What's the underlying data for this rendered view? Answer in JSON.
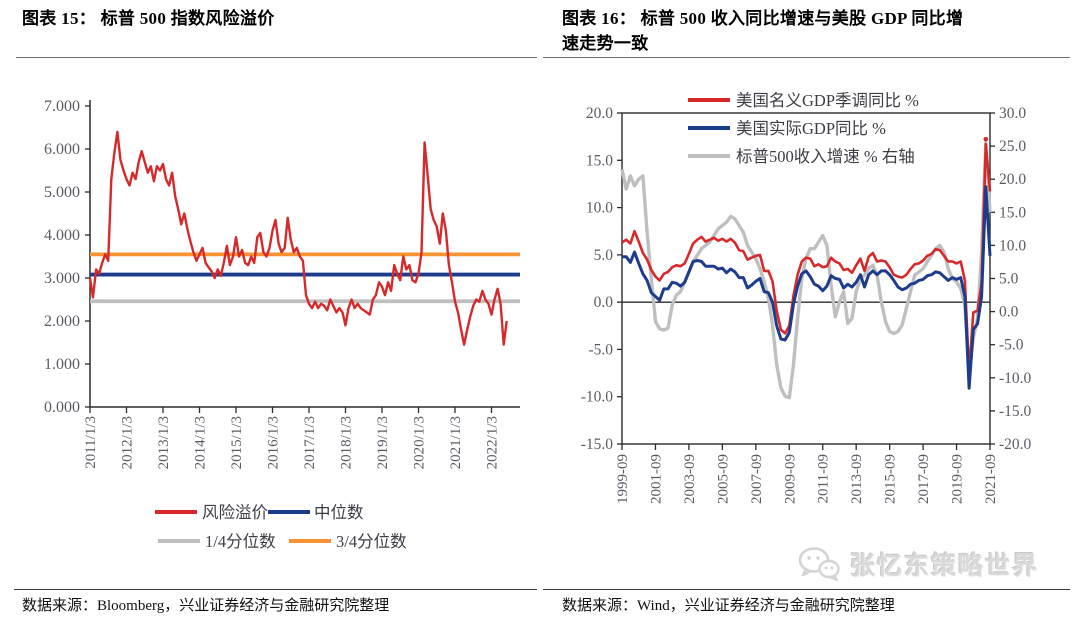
{
  "figure15": {
    "title": "图表 15： 标普 500 指数风险溢价",
    "source": "数据来源：Bloomberg，兴业证券经济与金融研究院整理"
  },
  "figure16": {
    "title_line1": "图表 16： 标普 500 收入同比增速与美股 GDP 同比增",
    "title_line2": "速走势一致",
    "source": "数据来源：Wind，兴业证券经济与金融研究院整理"
  },
  "watermark": {
    "text": "张忆东策略世界",
    "icon": "wechat-icon",
    "color": "#d9d9d9"
  },
  "colors": {
    "red": "#d7292a",
    "navy": "#1e3c8c",
    "gray": "#bfbfbf",
    "orange": "#f79333",
    "axis_text": "#5a5a64",
    "axis_line": "#2b2b2b"
  },
  "chart_data": [
    {
      "type": "line",
      "title": "标普 500 指数风险溢价",
      "ylim": [
        0,
        7
      ],
      "ytick_labels": [
        "0.000",
        "1.000",
        "2.000",
        "3.000",
        "4.000",
        "5.000",
        "6.000",
        "7.000"
      ],
      "x_tick_labels": [
        "2011/1/3",
        "2012/1/3",
        "2013/1/3",
        "2014/1/3",
        "2015/1/3",
        "2016/1/3",
        "2017/1/3",
        "2018/1/3",
        "2019/1/3",
        "2020/1/3",
        "2021/1/3",
        "2022/1/3"
      ],
      "x_start": 2011.0,
      "x_step": 0.0833333,
      "grid": false,
      "legend_position": "bottom",
      "series": [
        {
          "name": "风险溢价",
          "kind": "line",
          "color": "#d7292a",
          "width": 2.4,
          "y": [
            3.0,
            2.55,
            3.2,
            3.1,
            3.35,
            3.55,
            3.4,
            5.3,
            5.9,
            6.4,
            5.75,
            5.5,
            5.3,
            5.15,
            5.45,
            5.3,
            5.7,
            5.95,
            5.7,
            5.45,
            5.6,
            5.25,
            5.6,
            5.5,
            5.65,
            5.3,
            5.15,
            5.45,
            4.9,
            4.6,
            4.25,
            4.5,
            4.15,
            3.85,
            3.6,
            3.4,
            3.55,
            3.7,
            3.35,
            3.25,
            3.15,
            3.0,
            3.2,
            3.05,
            3.35,
            3.75,
            3.3,
            3.5,
            3.95,
            3.5,
            3.65,
            3.35,
            3.3,
            3.5,
            3.35,
            3.95,
            4.05,
            3.6,
            3.5,
            3.7,
            4.1,
            4.35,
            3.8,
            3.6,
            3.7,
            4.4,
            3.9,
            3.6,
            3.7,
            3.5,
            3.4,
            2.6,
            2.4,
            2.3,
            2.45,
            2.3,
            2.4,
            2.35,
            2.25,
            2.5,
            2.35,
            2.2,
            2.3,
            2.2,
            1.9,
            2.3,
            2.5,
            2.3,
            2.4,
            2.3,
            2.25,
            2.2,
            2.15,
            2.5,
            2.6,
            2.9,
            2.8,
            2.6,
            2.9,
            2.7,
            3.3,
            3.1,
            2.95,
            3.5,
            3.2,
            3.3,
            2.95,
            2.9,
            3.1,
            3.6,
            6.15,
            5.4,
            4.6,
            4.35,
            4.2,
            3.8,
            4.5,
            4.1,
            3.3,
            2.9,
            2.45,
            2.2,
            1.8,
            1.45,
            1.8,
            2.1,
            2.35,
            2.5,
            2.45,
            2.7,
            2.5,
            2.4,
            2.15,
            2.5,
            2.75,
            2.4,
            1.45,
            2.0
          ]
        },
        {
          "name": "中位数",
          "kind": "hline",
          "color": "#1e3c8c",
          "width": 3.8,
          "value": 3.08
        },
        {
          "name": "1/4分位数",
          "kind": "hline",
          "color": "#bfbfbf",
          "width": 3.8,
          "value": 2.46
        },
        {
          "name": "3/4分位数",
          "kind": "hline",
          "color": "#f79333",
          "width": 3.8,
          "value": 3.55
        }
      ],
      "legend_rows": [
        [
          "风险溢价",
          "中位数"
        ],
        [
          "1/4分位数",
          "3/4分位数"
        ]
      ]
    },
    {
      "type": "line",
      "title": "标普 500 收入同比增速与美股 GDP 同比增速走势一致",
      "left_ylim": [
        -15,
        20
      ],
      "right_ylim": [
        -20,
        30
      ],
      "left_ytick_labels": [
        "20.0",
        "15.0",
        "10.0",
        "5.0",
        "0.0",
        "-5.0",
        "-10.0",
        "-15.0"
      ],
      "right_ytick_labels": [
        "30.0",
        "25.0",
        "20.0",
        "15.0",
        "10.0",
        "5.0",
        "0.0",
        "-5.0",
        "-10.0",
        "-15.0",
        "-20.0"
      ],
      "x_tick_labels": [
        "1999-09",
        "2001-09",
        "2003-09",
        "2005-09",
        "2007-09",
        "2009-09",
        "2011-09",
        "2013-09",
        "2015-09",
        "2017-09",
        "2019-09",
        "2021-09"
      ],
      "x_start": 1999.75,
      "x_step": 0.25,
      "zero_line": true,
      "legend_position": "top",
      "series": [
        {
          "name": "美国名义GDP季调同比 %",
          "axis": "left",
          "color": "#d7292a",
          "width": 2.6,
          "marker_at_max": true,
          "y": [
            6.3,
            6.6,
            6.2,
            7.5,
            6.4,
            5.2,
            4.5,
            3.4,
            2.7,
            2.3,
            3.0,
            3.2,
            3.7,
            3.9,
            3.8,
            4.1,
            5.1,
            6.2,
            6.6,
            6.9,
            6.4,
            6.6,
            6.8,
            6.5,
            6.7,
            6.4,
            6.7,
            6.3,
            5.5,
            5.4,
            4.5,
            4.7,
            4.9,
            5.0,
            3.3,
            3.3,
            2.2,
            -0.9,
            -2.9,
            -3.3,
            -2.5,
            0.7,
            2.9,
            4.3,
            4.7,
            4.6,
            3.8,
            4.0,
            3.7,
            3.8,
            4.7,
            4.3,
            4.1,
            3.4,
            3.5,
            3.1,
            3.9,
            4.6,
            3.3,
            4.8,
            5.2,
            4.3,
            4.4,
            4.3,
            3.7,
            2.9,
            2.7,
            2.6,
            2.9,
            3.5,
            4.0,
            4.1,
            4.4,
            4.9,
            5.1,
            5.6,
            5.5,
            4.9,
            4.3,
            4.3,
            4.1,
            4.3,
            2.3,
            -7.6,
            -1.1,
            -0.9,
            2.0,
            16.7,
            11.7
          ]
        },
        {
          "name": "美国实际GDP同比 %",
          "axis": "left",
          "color": "#1e3c8c",
          "width": 3.0,
          "y": [
            4.8,
            4.8,
            4.2,
            5.3,
            4.1,
            3.0,
            2.3,
            1.0,
            0.6,
            0.2,
            1.4,
            1.4,
            2.1,
            2.0,
            1.7,
            2.1,
            3.2,
            4.3,
            4.4,
            4.3,
            3.8,
            3.8,
            3.8,
            3.5,
            3.6,
            3.1,
            3.5,
            3.2,
            2.6,
            2.6,
            1.5,
            1.8,
            2.2,
            2.5,
            1.1,
            1.0,
            0.0,
            -2.5,
            -3.9,
            -4.0,
            -3.2,
            -0.2,
            1.7,
            3.0,
            3.3,
            2.7,
            1.9,
            1.7,
            1.2,
            1.7,
            2.8,
            2.5,
            2.4,
            1.5,
            1.9,
            1.6,
            2.1,
            2.9,
            1.6,
            2.9,
            3.3,
            2.9,
            3.3,
            3.3,
            2.9,
            2.3,
            1.6,
            1.3,
            1.5,
            1.9,
            2.0,
            2.3,
            2.4,
            2.8,
            2.9,
            3.2,
            3.1,
            2.7,
            2.3,
            2.6,
            2.4,
            2.6,
            0.6,
            -9.1,
            -2.9,
            -2.3,
            0.6,
            12.2,
            4.9
          ]
        },
        {
          "name": "标普500收入增速 % 右轴",
          "axis": "right",
          "color": "#bfbfbf",
          "width": 3.4,
          "y": [
            21.5,
            18.5,
            20.5,
            19.0,
            20.0,
            20.5,
            12.0,
            5.0,
            -1.5,
            -2.6,
            -2.8,
            -2.5,
            1.0,
            2.5,
            3.0,
            4.5,
            6.0,
            7.5,
            8.5,
            9.5,
            10.0,
            10.5,
            11.5,
            12.5,
            13.0,
            13.5,
            14.4,
            14.0,
            13.0,
            12.0,
            10.0,
            9.0,
            8.0,
            6.5,
            4.5,
            2.0,
            -2.0,
            -8.0,
            -11.5,
            -12.8,
            -13.0,
            -8.0,
            -1.0,
            5.0,
            8.0,
            9.5,
            9.5,
            10.5,
            11.5,
            10.0,
            4.0,
            -0.8,
            1.5,
            3.0,
            -1.8,
            -1.0,
            3.0,
            5.0,
            5.5,
            6.5,
            7.0,
            5.5,
            1.5,
            -1.5,
            -3.0,
            -3.3,
            -3.0,
            -2.0,
            0.5,
            3.0,
            5.5,
            6.0,
            6.5,
            7.5,
            8.5,
            9.5,
            10.0,
            9.0,
            6.5,
            5.0,
            4.5,
            3.5,
            1.0,
            -9.3,
            -4.0,
            -1.0,
            9.0,
            25.5,
            15.0
          ]
        }
      ],
      "draw_order": [
        2,
        0,
        1
      ],
      "legend": [
        "美国名义GDP季调同比 %",
        "美国实际GDP同比 %",
        "标普500收入增速 % 右轴"
      ]
    }
  ]
}
